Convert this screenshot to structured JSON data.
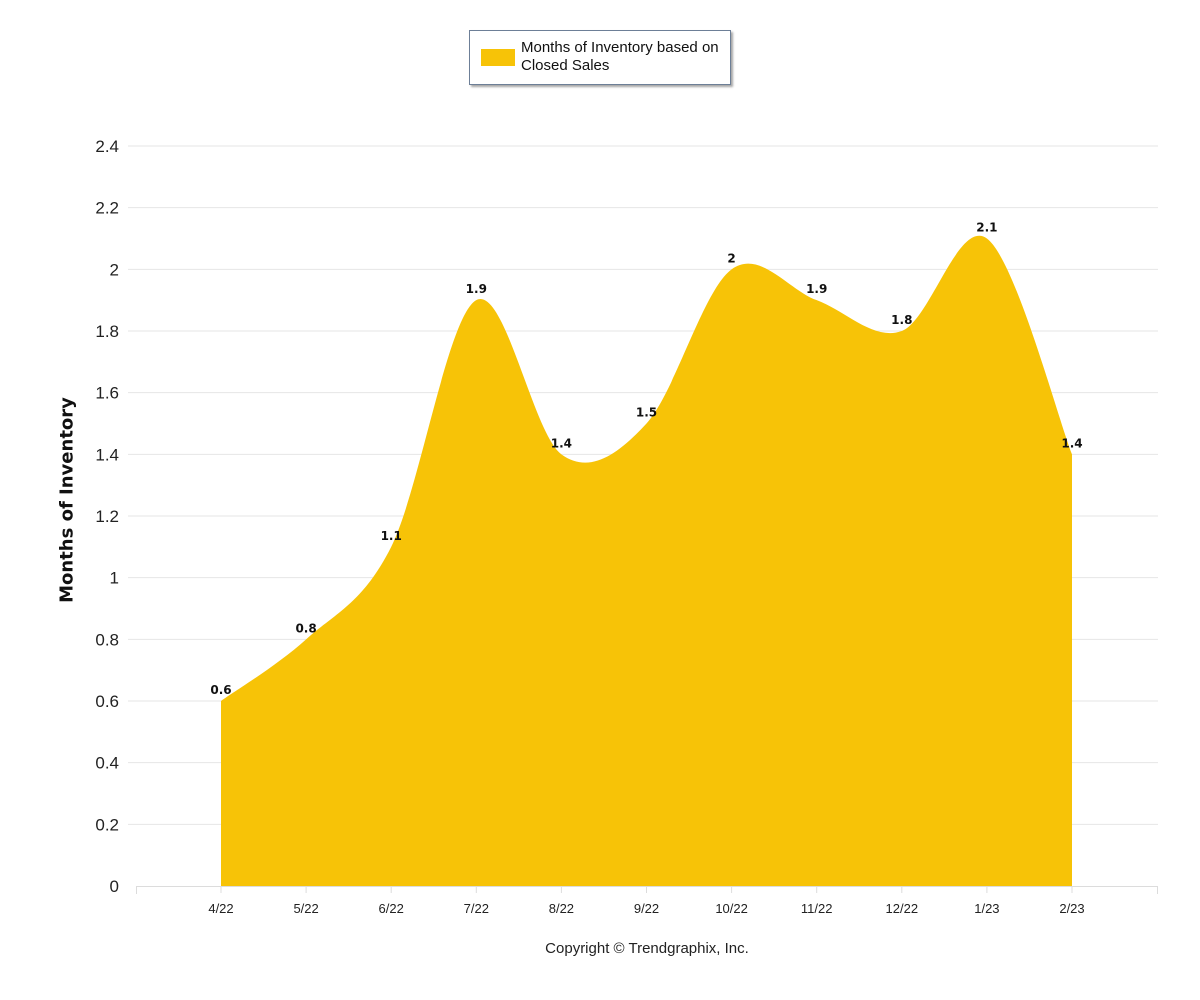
{
  "legend": {
    "label": "Months of Inventory based on Closed Sales"
  },
  "footer": {
    "copyright": "Copyright © Trendgraphix, Inc."
  },
  "chart_data": {
    "type": "area",
    "categories": [
      "4/22",
      "5/22",
      "6/22",
      "7/22",
      "8/22",
      "9/22",
      "10/22",
      "11/22",
      "12/22",
      "1/23",
      "2/23"
    ],
    "series": [
      {
        "name": "Months of Inventory based on Closed Sales",
        "values": [
          0.6,
          0.8,
          1.1,
          1.9,
          1.4,
          1.5,
          2,
          1.9,
          1.8,
          2.1,
          1.4
        ],
        "color": "#f7c307"
      }
    ],
    "ylabel": "Months of Inventory",
    "xlabel": "",
    "ylim": [
      0,
      2.4
    ],
    "yticks": [
      0,
      0.2,
      0.4,
      0.6,
      0.8,
      1,
      1.2,
      1.4,
      1.6,
      1.8,
      2,
      2.2,
      2.4
    ],
    "ytick_labels": [
      "0",
      "0.2",
      "0.4",
      "0.6",
      "0.8",
      "1",
      "1.2",
      "1.4",
      "1.6",
      "1.8",
      "2",
      "2.2",
      "2.4"
    ],
    "grid": true,
    "data_labels": true,
    "legend_position": "top-center",
    "gridline_color": "#e6e6e6"
  }
}
